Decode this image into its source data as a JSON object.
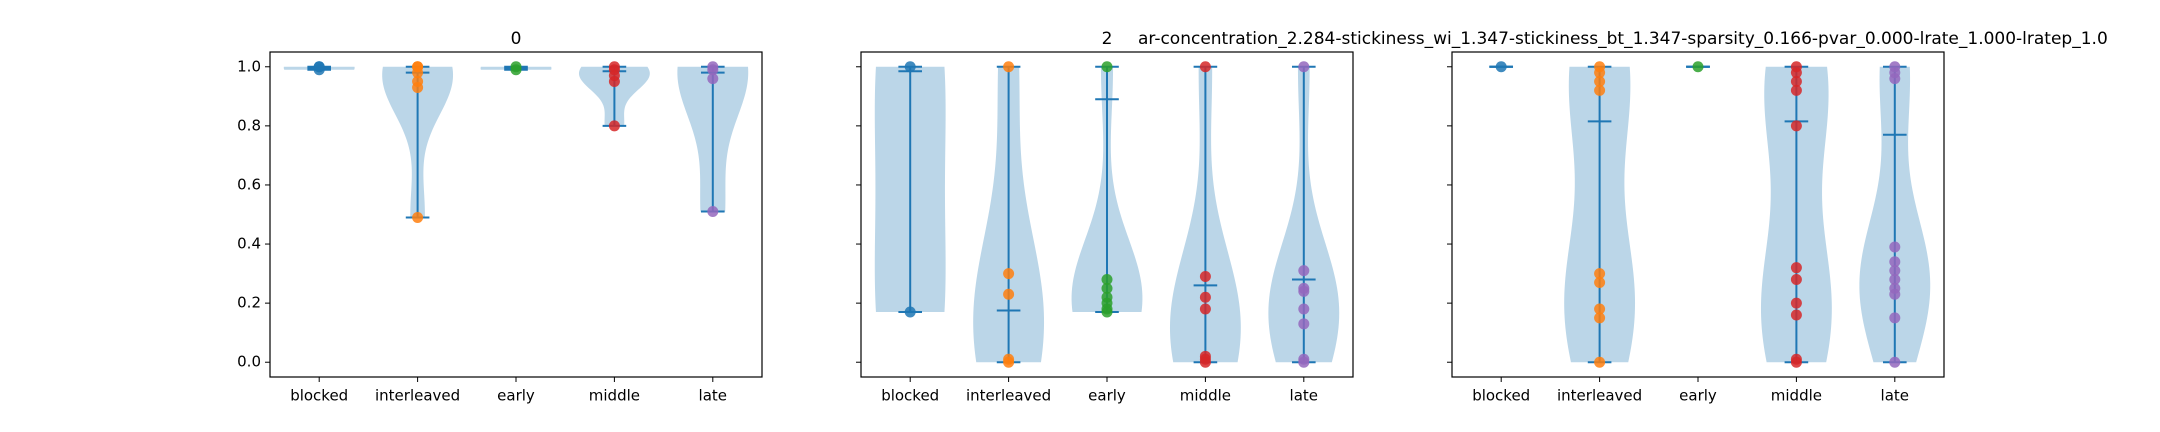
{
  "chart_data": [
    {
      "type": "violin",
      "title": "0",
      "categories": [
        "blocked",
        "interleaved",
        "early",
        "middle",
        "late"
      ],
      "colors": [
        "#1f77b4",
        "#ff7f0e",
        "#2ca02c",
        "#d62728",
        "#9467bd"
      ],
      "values": [
        [
          1.0,
          0.99,
          1.0
        ],
        [
          1.0,
          0.98,
          0.95,
          0.93,
          0.49,
          1.0
        ],
        [
          1.0,
          0.99
        ],
        [
          1.0,
          0.99,
          0.97,
          0.95,
          0.8
        ],
        [
          1.0,
          0.99,
          0.96,
          0.51
        ]
      ],
      "means": [
        0.995,
        0.98,
        0.995,
        0.985,
        0.98
      ],
      "ylim": [
        -0.05,
        1.05
      ],
      "yticks": [
        {
          "value": 0,
          "label": "0.0"
        },
        {
          "value": 0.2,
          "label": "0.2"
        },
        {
          "value": 0.4,
          "label": "0.4"
        },
        {
          "value": 0.6,
          "label": "0.6"
        },
        {
          "value": 0.8,
          "label": "0.8"
        },
        {
          "value": 1,
          "label": "1.0"
        }
      ]
    },
    {
      "type": "violin",
      "title": "2",
      "categories": [
        "blocked",
        "interleaved",
        "early",
        "middle",
        "late"
      ],
      "colors": [
        "#1f77b4",
        "#ff7f0e",
        "#2ca02c",
        "#d62728",
        "#9467bd"
      ],
      "values": [
        [
          1.0,
          0.17
        ],
        [
          1.0,
          0.3,
          0.23,
          0.01,
          0.0
        ],
        [
          1.0,
          0.28,
          0.25,
          0.22,
          0.2,
          0.18,
          0.17
        ],
        [
          1.0,
          0.29,
          0.22,
          0.18,
          0.02,
          0.01,
          0.0
        ],
        [
          1.0,
          0.31,
          0.25,
          0.24,
          0.18,
          0.13,
          0.01,
          0.0
        ]
      ],
      "means": [
        0.985,
        0.175,
        0.89,
        0.26,
        0.28
      ],
      "ylim": [
        -0.05,
        1.05
      ],
      "yticks": [
        0,
        0.2,
        0.4,
        0.6,
        0.8,
        1
      ]
    },
    {
      "type": "violin",
      "title": "ar-concentration_2.284-stickiness_wi_1.347-stickiness_bt_1.347-sparsity_0.166-pvar_0.000-lrate_1.000-lratep_1.0",
      "categories": [
        "blocked",
        "interleaved",
        "early",
        "middle",
        "late"
      ],
      "colors": [
        "#1f77b4",
        "#ff7f0e",
        "#2ca02c",
        "#d62728",
        "#9467bd"
      ],
      "values": [
        [
          1.0
        ],
        [
          1.0,
          0.98,
          0.95,
          0.92,
          0.3,
          0.27,
          0.18,
          0.15,
          0.0
        ],
        [
          1.0
        ],
        [
          1.0,
          0.98,
          0.95,
          0.92,
          0.8,
          0.32,
          0.28,
          0.2,
          0.16,
          0.01,
          0.0
        ],
        [
          1.0,
          0.98,
          0.96,
          0.39,
          0.34,
          0.31,
          0.28,
          0.25,
          0.23,
          0.15,
          0.0
        ]
      ],
      "means": [
        1.0,
        0.815,
        1.0,
        0.815,
        0.77
      ],
      "ylim": [
        -0.05,
        1.05
      ],
      "yticks": [
        0,
        0.2,
        0.4,
        0.6,
        0.8,
        1
      ]
    }
  ]
}
